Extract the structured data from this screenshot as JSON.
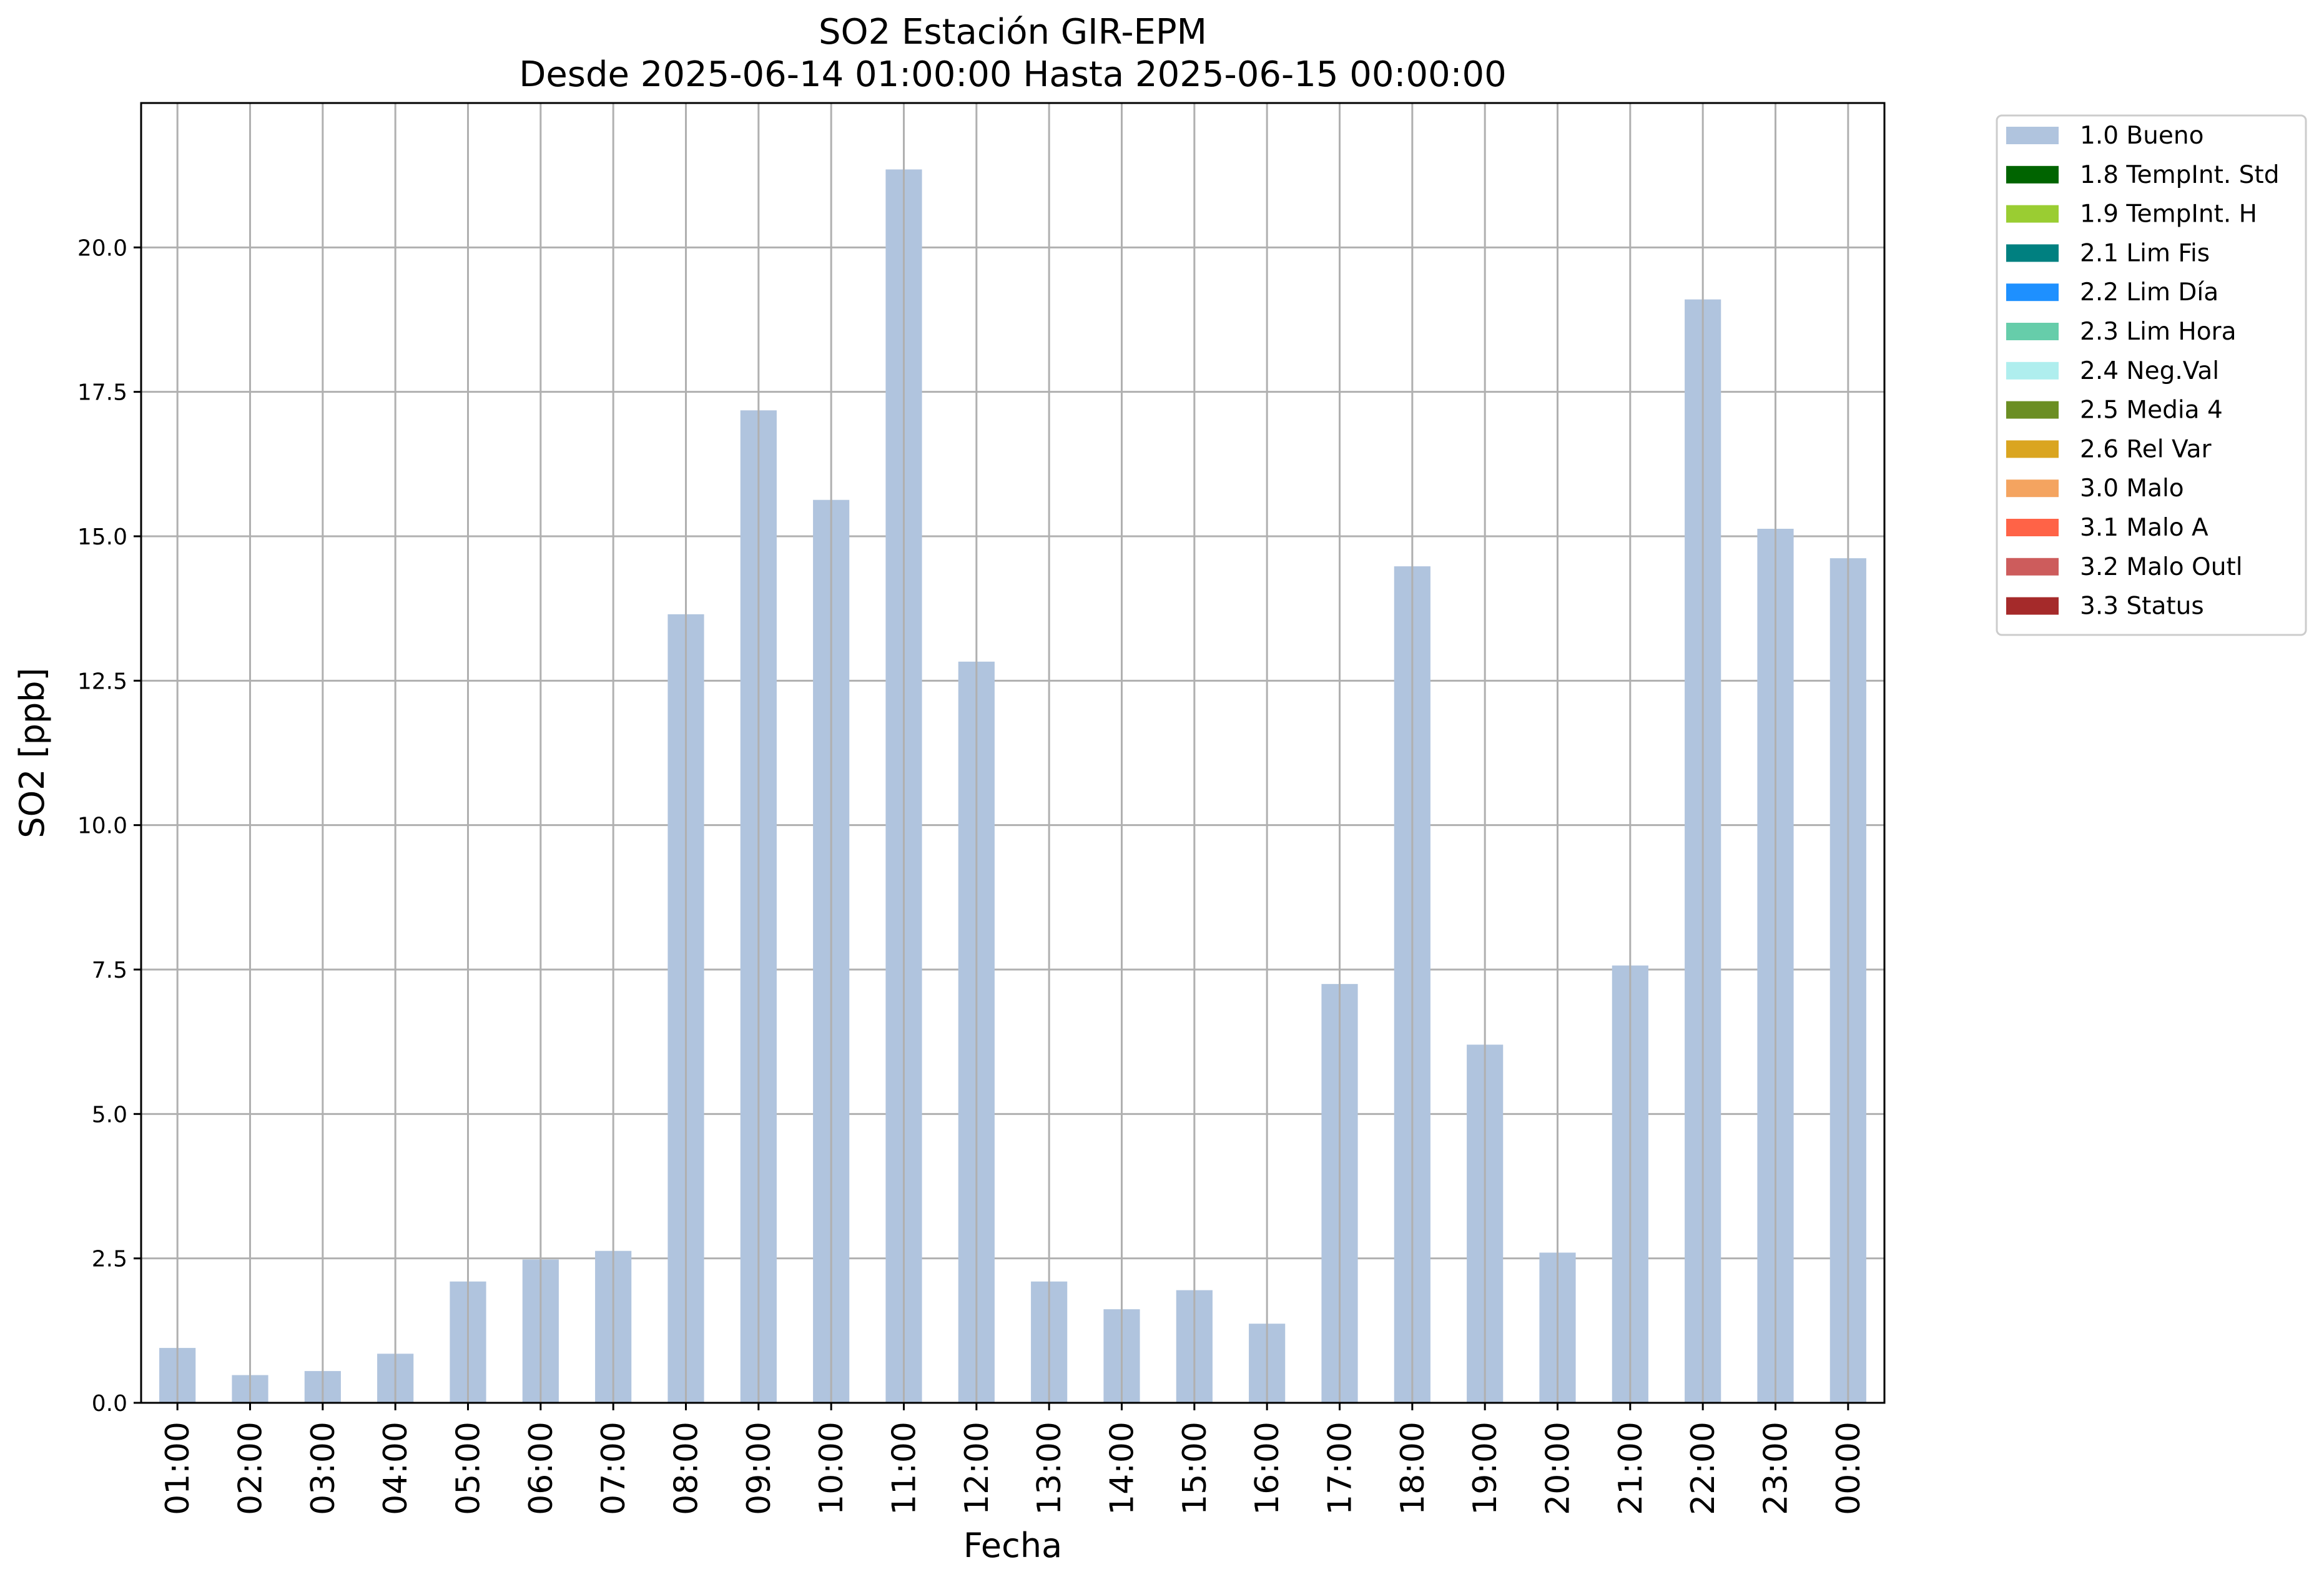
{
  "chart_data": {
    "type": "bar",
    "title": "SO2 Estación GIR-EPM",
    "subtitle": "Desde 2025-06-14 01:00:00 Hasta 2025-06-15 00:00:00",
    "xlabel": "Fecha",
    "ylabel": "SO2 [ppb]",
    "categories": [
      "01:00",
      "02:00",
      "03:00",
      "04:00",
      "05:00",
      "06:00",
      "07:00",
      "08:00",
      "09:00",
      "10:00",
      "11:00",
      "12:00",
      "13:00",
      "14:00",
      "15:00",
      "16:00",
      "17:00",
      "18:00",
      "19:00",
      "20:00",
      "21:00",
      "22:00",
      "23:00",
      "00:00"
    ],
    "series": [
      {
        "name": "1.0 Bueno",
        "color": "#b0c4de",
        "values": [
          0.95,
          0.48,
          0.55,
          0.85,
          2.1,
          2.48,
          2.63,
          13.65,
          17.18,
          15.63,
          21.35,
          12.83,
          2.1,
          1.62,
          1.95,
          1.37,
          7.25,
          14.48,
          6.2,
          2.6,
          7.57,
          19.1,
          15.13,
          14.62
        ]
      }
    ],
    "ylim": [
      0,
      22.5
    ],
    "yticks": [
      "0.0",
      "2.5",
      "5.0",
      "7.5",
      "10.0",
      "12.5",
      "15.0",
      "17.5",
      "20.0"
    ],
    "grid": true,
    "legend_position": "outside-right",
    "legend": [
      {
        "label": "1.0 Bueno",
        "color": "#b0c4de"
      },
      {
        "label": "1.8 TempInt. Std",
        "color": "#006400"
      },
      {
        "label": "1.9 TempInt. H",
        "color": "#9acd32"
      },
      {
        "label": "2.1 Lim Fis",
        "color": "#008080"
      },
      {
        "label": "2.2 Lim Día",
        "color": "#1e90ff"
      },
      {
        "label": "2.3 Lim Hora",
        "color": "#66cdaa"
      },
      {
        "label": "2.4 Neg.Val",
        "color": "#afeeee"
      },
      {
        "label": "2.5 Media 4",
        "color": "#6b8e23"
      },
      {
        "label": "2.6 Rel Var",
        "color": "#daa520"
      },
      {
        "label": "3.0 Malo",
        "color": "#f4a460"
      },
      {
        "label": "3.1 Malo A",
        "color": "#ff6347"
      },
      {
        "label": "3.2 Malo Outl",
        "color": "#cd5c5c"
      },
      {
        "label": "3.3 Status",
        "color": "#a52a2a"
      }
    ]
  }
}
